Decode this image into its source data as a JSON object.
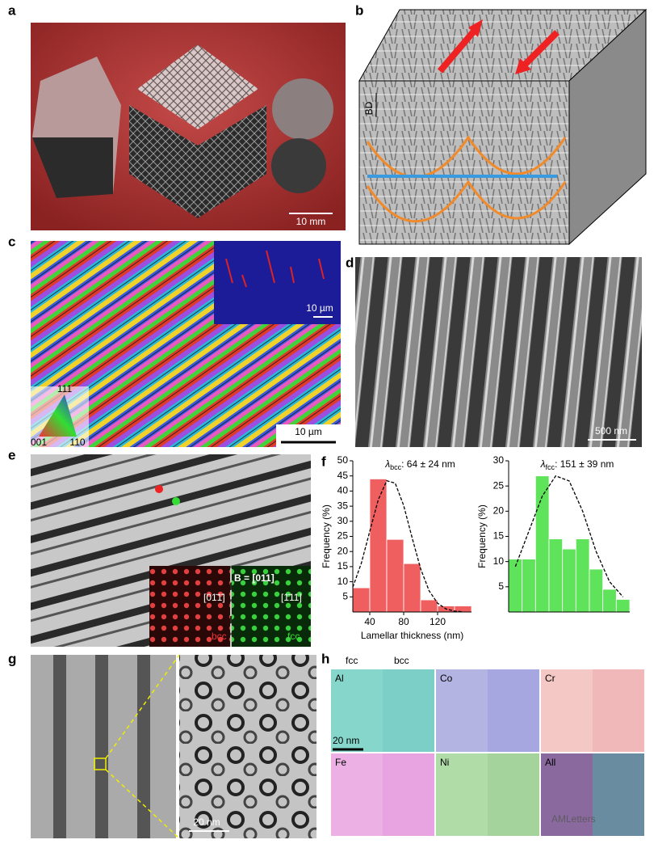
{
  "panels": {
    "a": {
      "label": "a",
      "scale_bar": "10 mm"
    },
    "b": {
      "label": "b",
      "axis": "BD"
    },
    "c": {
      "label": "c",
      "inset_scale_bar": "10 µm",
      "scale_bar": "10 µm",
      "legend": [
        "111",
        "001",
        "110"
      ]
    },
    "d": {
      "label": "d",
      "scale_bar": "500 nm"
    },
    "e": {
      "label": "e",
      "zone_axis": "B = [011]",
      "bcc_direction": "[01̄1̄]",
      "fcc_direction": "[1̄11]",
      "bcc_label": "bcc",
      "fcc_label": "fcc"
    },
    "f": {
      "label": "f"
    },
    "g": {
      "label": "g",
      "scale_bar": "20 nm"
    },
    "h": {
      "label": "h",
      "fcc": "fcc",
      "bcc": "bcc",
      "scale_bar": "20 nm",
      "elements": [
        "Al",
        "Co",
        "Cr",
        "Fe",
        "Ni",
        "All"
      ]
    }
  },
  "watermark": "AMLetters",
  "chart_data": [
    {
      "type": "histogram",
      "title": {
        "symbol": "λ",
        "subscript": "bcc",
        "text": ": 64 ± 24 nm"
      },
      "x_label": "Lamellar thickness (nm)",
      "y_label": "Frequency (%)",
      "color": "#ef5f60",
      "bins": [
        20,
        40,
        60,
        80,
        100,
        120,
        140,
        160
      ],
      "values": [
        8,
        44,
        24,
        16,
        4,
        2,
        2
      ],
      "xlim": [
        20,
        160
      ],
      "xticks": [
        40,
        80,
        120
      ],
      "ylim": [
        0,
        50
      ],
      "yticks": [
        5,
        10,
        15,
        20,
        25,
        30,
        35,
        40,
        45,
        50
      ],
      "fit_x": [
        20,
        30,
        40,
        50,
        60,
        70,
        80,
        90,
        100,
        110,
        120,
        130,
        140,
        150
      ],
      "fit_values": [
        8.2,
        16.1,
        26.7,
        37.1,
        43.4,
        42.6,
        35.2,
        24.5,
        14.3,
        7.0,
        2.9,
        1.0,
        0.3,
        0.07
      ]
    },
    {
      "type": "bar",
      "title": {
        "symbol": "λ",
        "subscript": "fcc",
        "text": ": 151 ± 39 nm"
      },
      "y_label": "Frequency (%)",
      "color": "#5fe35a",
      "categories": [
        null,
        null,
        null,
        null,
        null,
        null,
        null,
        null,
        null
      ],
      "values": [
        10.5,
        10.5,
        27,
        14.5,
        12.5,
        14.5,
        8.5,
        4.5,
        2.5
      ],
      "ylim": [
        0,
        30
      ],
      "yticks": [
        5,
        10,
        15,
        20,
        25,
        30
      ],
      "fit_values": [
        9,
        16,
        23,
        27,
        26,
        20,
        12,
        6,
        3
      ]
    }
  ]
}
